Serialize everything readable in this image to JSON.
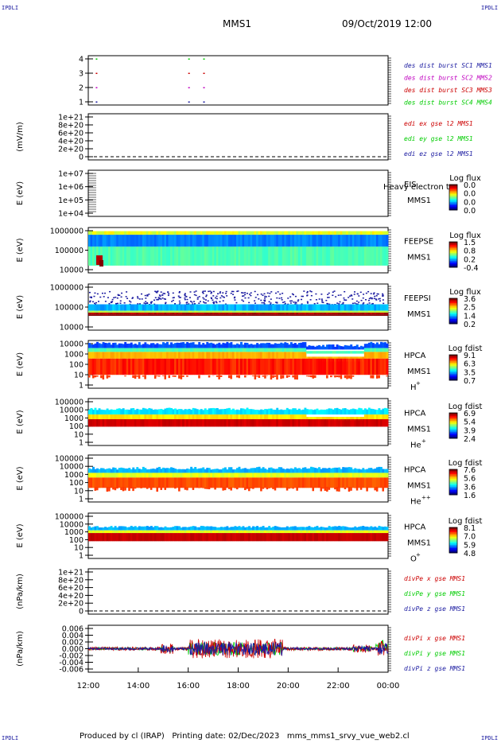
{
  "corner_label": "IPDLI",
  "header": {
    "spacecraft": "MMS1",
    "datetime": "09/Oct/2019 12:00"
  },
  "footer": {
    "produced_by": "Produced by cl (IRAP)",
    "printing_date": "Printing date: 02/Dec/2023",
    "script": "mms_mms1_srvy_vue_web2.cl"
  },
  "chart_data": [
    {
      "type": "scatter",
      "panel": "burst-availability",
      "yticks": [
        "4",
        "3",
        "2",
        "1"
      ],
      "series": [
        {
          "name": "des dist burst SC1 MMS1",
          "color": "#1a1aa0",
          "level": 1
        },
        {
          "name": "des dist burst SC2 MMS2",
          "color": "#c000c0",
          "level": 2
        },
        {
          "name": "des dist burst SC3 MMS3",
          "color": "#cc0000",
          "level": 3
        },
        {
          "name": "des dist burst SC4 MMS4",
          "color": "#00cc00",
          "level": 4
        }
      ],
      "x_hours": [
        12.3,
        16.0,
        16.6
      ]
    },
    {
      "type": "line",
      "panel": "edi-e-field",
      "ylabel": "(mV/m)",
      "yticks": [
        "1e+21",
        "8e+20",
        "6e+20",
        "4e+20",
        "2e+20",
        "0"
      ],
      "series": [
        {
          "name": "edi ex gse l2 MMS1",
          "color": "#cc0000"
        },
        {
          "name": "edi ey gse l2 MMS1",
          "color": "#00cc00"
        },
        {
          "name": "edi ez gse l2 MMS1",
          "color": "#1a1aa0"
        }
      ]
    },
    {
      "type": "heatmap",
      "panel": "eis",
      "ylabel": "E (eV)",
      "yticks": [
        "1e+07",
        "1e+06",
        "1e+05",
        "1e+04"
      ],
      "instrument": "EIS",
      "spacecraft": "MMS1",
      "overlay": "Heavy electron to",
      "colorbar_title": "Log flux",
      "colorbar_ticks": [
        "0.0",
        "0.0",
        "0.0",
        "0.0"
      ]
    },
    {
      "type": "heatmap",
      "panel": "feeps-electron",
      "ylabel": "E (eV)",
      "yticks": [
        "1000000",
        "100000",
        "10000"
      ],
      "instrument": "FEEPSE",
      "spacecraft": "MMS1",
      "colorbar_title": "Log flux",
      "colorbar_ticks": [
        "1.5",
        "0.8",
        "0.2",
        "-0.4"
      ]
    },
    {
      "type": "heatmap",
      "panel": "feeps-ion",
      "ylabel": "E (eV)",
      "yticks": [
        "1000000",
        "100000",
        "10000"
      ],
      "instrument": "FEEPSI",
      "spacecraft": "MMS1",
      "colorbar_title": "Log flux",
      "colorbar_ticks": [
        "3.6",
        "2.5",
        "1.4",
        "0.2"
      ]
    },
    {
      "type": "heatmap",
      "panel": "hpca-h",
      "ylabel": "E (eV)",
      "yticks": [
        "10000",
        "1000",
        "100",
        "10",
        "1"
      ],
      "instrument": "HPCA",
      "spacecraft": "MMS1",
      "species": "H",
      "charge": "+",
      "colorbar_title": "Log fdist",
      "colorbar_ticks": [
        "9.1",
        "6.3",
        "3.5",
        "0.7"
      ]
    },
    {
      "type": "heatmap",
      "panel": "hpca-he1",
      "ylabel": "E (eV)",
      "yticks": [
        "100000",
        "10000",
        "1000",
        "100",
        "10",
        "1"
      ],
      "instrument": "HPCA",
      "spacecraft": "MMS1",
      "species": "He",
      "charge": "+",
      "colorbar_title": "Log fdist",
      "colorbar_ticks": [
        "6.9",
        "5.4",
        "3.9",
        "2.4"
      ]
    },
    {
      "type": "heatmap",
      "panel": "hpca-he2",
      "ylabel": "E (eV)",
      "yticks": [
        "100000",
        "10000",
        "1000",
        "100",
        "10",
        "1"
      ],
      "instrument": "HPCA",
      "spacecraft": "MMS1",
      "species": "He",
      "charge": "++",
      "colorbar_title": "Log fdist",
      "colorbar_ticks": [
        "7.6",
        "5.6",
        "3.6",
        "1.6"
      ]
    },
    {
      "type": "heatmap",
      "panel": "hpca-o",
      "ylabel": "E (eV)",
      "yticks": [
        "100000",
        "10000",
        "1000",
        "100",
        "10",
        "1"
      ],
      "instrument": "HPCA",
      "spacecraft": "MMS1",
      "species": "O",
      "charge": "+",
      "colorbar_title": "Log fdist",
      "colorbar_ticks": [
        "8.1",
        "7.0",
        "5.9",
        "4.8"
      ]
    },
    {
      "type": "line",
      "panel": "divpe",
      "ylabel": "(nPa/km)",
      "yticks": [
        "1e+21",
        "8e+20",
        "6e+20",
        "4e+20",
        "2e+20",
        "0"
      ],
      "series": [
        {
          "name": "divPe x gse MMS1",
          "color": "#cc0000"
        },
        {
          "name": "divPe y gse MMS1",
          "color": "#00cc00"
        },
        {
          "name": "divPe z gse MMS1",
          "color": "#1a1aa0"
        }
      ]
    },
    {
      "type": "line",
      "panel": "divpi",
      "ylabel": "(nPa/km)",
      "yticks": [
        "0.006",
        "0.004",
        "0.002",
        "0.000",
        "-0.002",
        "-0.004",
        "-0.006"
      ],
      "ylim": [
        -0.007,
        0.007
      ],
      "series": [
        {
          "name": "divPi x gse MMS1",
          "color": "#cc0000"
        },
        {
          "name": "divPi y gse MMS1",
          "color": "#00cc00"
        },
        {
          "name": "divPi z gse MMS1",
          "color": "#1a1aa0"
        }
      ]
    }
  ],
  "x_axis": {
    "ticks": [
      "12:00",
      "14:00",
      "16:00",
      "18:00",
      "20:00",
      "22:00",
      "00:00"
    ],
    "range_hours": [
      12,
      24
    ]
  },
  "colors": {
    "axis": "#000000",
    "text_blue": "#1a1aa0"
  }
}
